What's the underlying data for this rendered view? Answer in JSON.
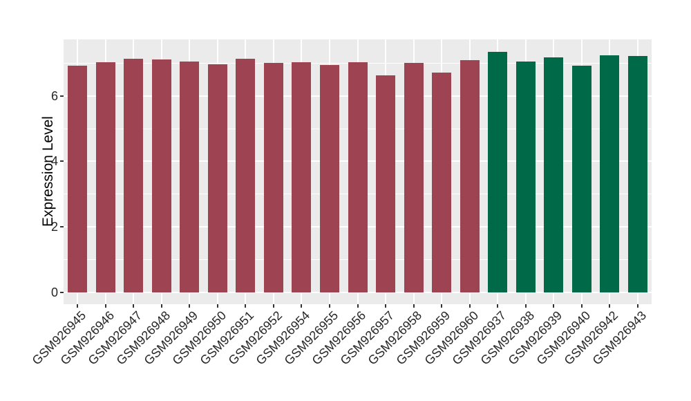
{
  "chart_data": {
    "type": "bar",
    "title": "",
    "xlabel": "",
    "ylabel": "Expression Level",
    "ylim": [
      0,
      7.71
    ],
    "yticks": [
      0,
      2,
      4,
      6
    ],
    "minor_gridlines": [
      1,
      3,
      5,
      7
    ],
    "grid": "on",
    "legend": "none",
    "panel_background": "#EBEBEB",
    "gridline_color": "#FFFFFF",
    "axis_text_color": "#262626",
    "tick_mark_color": "#333333",
    "palette": {
      "maroon": "#9D4352",
      "green": "#006948"
    },
    "bars": [
      {
        "label": "GSM926945",
        "value": 6.93,
        "color": "#9D4352"
      },
      {
        "label": "GSM926946",
        "value": 7.03,
        "color": "#9D4352"
      },
      {
        "label": "GSM926947",
        "value": 7.14,
        "color": "#9D4352"
      },
      {
        "label": "GSM926948",
        "value": 7.1,
        "color": "#9D4352"
      },
      {
        "label": "GSM926949",
        "value": 7.05,
        "color": "#9D4352"
      },
      {
        "label": "GSM926950",
        "value": 6.97,
        "color": "#9D4352"
      },
      {
        "label": "GSM926951",
        "value": 7.14,
        "color": "#9D4352"
      },
      {
        "label": "GSM926952",
        "value": 7.01,
        "color": "#9D4352"
      },
      {
        "label": "GSM926954",
        "value": 7.03,
        "color": "#9D4352"
      },
      {
        "label": "GSM926955",
        "value": 6.94,
        "color": "#9D4352"
      },
      {
        "label": "GSM926956",
        "value": 7.03,
        "color": "#9D4352"
      },
      {
        "label": "GSM926957",
        "value": 6.63,
        "color": "#9D4352"
      },
      {
        "label": "GSM926958",
        "value": 7.01,
        "color": "#9D4352"
      },
      {
        "label": "GSM926959",
        "value": 6.71,
        "color": "#9D4352"
      },
      {
        "label": "GSM926960",
        "value": 7.08,
        "color": "#9D4352"
      },
      {
        "label": "GSM926937",
        "value": 7.35,
        "color": "#006948"
      },
      {
        "label": "GSM926938",
        "value": 7.05,
        "color": "#006948"
      },
      {
        "label": "GSM926939",
        "value": 7.18,
        "color": "#006948"
      },
      {
        "label": "GSM926940",
        "value": 6.92,
        "color": "#006948"
      },
      {
        "label": "GSM926942",
        "value": 7.23,
        "color": "#006948"
      },
      {
        "label": "GSM926943",
        "value": 7.21,
        "color": "#006948"
      }
    ]
  }
}
